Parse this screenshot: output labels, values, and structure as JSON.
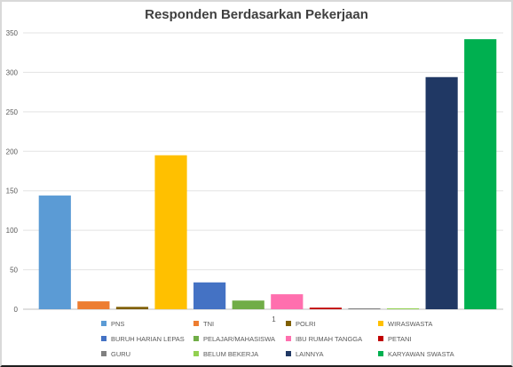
{
  "chart_data": {
    "type": "bar",
    "title": "Responden Berdasarkan Pekerjaan",
    "x_tick_labels": [
      "1"
    ],
    "ylim": [
      0,
      350
    ],
    "yticks": [
      0,
      50,
      100,
      150,
      200,
      250,
      300,
      350
    ],
    "grid": true,
    "legend_placement": "bottom",
    "series": [
      {
        "name": "PNS",
        "value": 144,
        "color": "#5b9bd5"
      },
      {
        "name": "TNI",
        "value": 10,
        "color": "#ed7d31"
      },
      {
        "name": "POLRI",
        "value": 3,
        "color": "#7f5f00"
      },
      {
        "name": "WIRASWASTA",
        "value": 195,
        "color": "#ffc000"
      },
      {
        "name": "BURUH HARIAN LEPAS",
        "value": 34,
        "color": "#4472c4"
      },
      {
        "name": "PELAJAR/MAHASISWA",
        "value": 11,
        "color": "#70ad47"
      },
      {
        "name": "IBU RUMAH TANGGA",
        "value": 19,
        "color": "#ff6fae"
      },
      {
        "name": "PETANI",
        "value": 2,
        "color": "#c00000"
      },
      {
        "name": "GURU",
        "value": 1,
        "color": "#808080"
      },
      {
        "name": "BELUM BEKERJA",
        "value": 1,
        "color": "#92d050"
      },
      {
        "name": "LAINNYA",
        "value": 294,
        "color": "#203864"
      },
      {
        "name": "KARYAWAN SWASTA",
        "value": 342,
        "color": "#00b050"
      }
    ]
  }
}
